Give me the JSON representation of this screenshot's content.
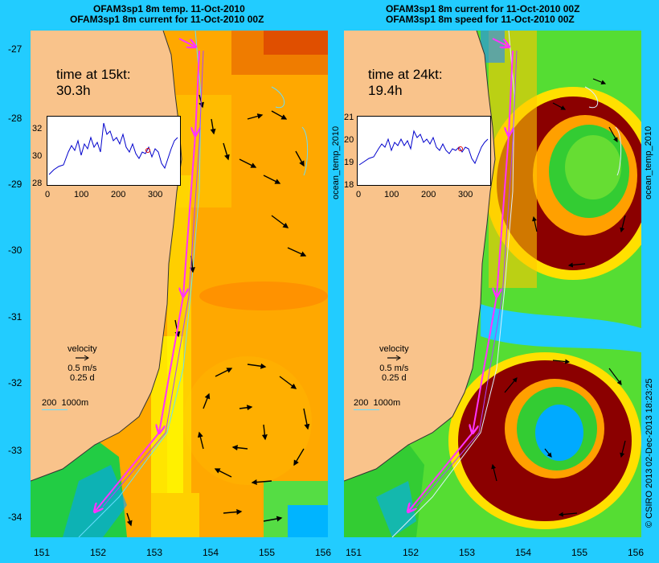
{
  "titles": {
    "left_line1": "OFAM3sp1 8m temp. 11-Oct-2010",
    "left_line2": "OFAM3sp1 8m current for 11-Oct-2010 00Z",
    "right_line1": "OFAM3sp1 8m current for 11-Oct-2010 00Z",
    "right_line2": "OFAM3sp1 8m speed for 11-Oct-2010 00Z"
  },
  "y_ticks": [
    "-27",
    "-28",
    "-29",
    "-30",
    "-31",
    "-32",
    "-33",
    "-34"
  ],
  "x_ticks": [
    "151",
    "152",
    "153",
    "154",
    "155",
    "156"
  ],
  "left_panel": {
    "time_label": "time at 15kt:",
    "time_value": "30.3h",
    "inset_y_ticks": [
      "32",
      "30",
      "28"
    ],
    "inset_x_ticks": [
      "0",
      "100",
      "200",
      "300"
    ]
  },
  "right_panel": {
    "time_label": "time at 24kt:",
    "time_value": "19.4h",
    "inset_y_ticks": [
      "21",
      "20",
      "19",
      "18"
    ],
    "inset_x_ticks": [
      "0",
      "100",
      "200",
      "300"
    ]
  },
  "velocity_legend": {
    "label": "velocity",
    "speed": "0.5 m/s",
    "duration": "0.25 d"
  },
  "depth_legend": {
    "contour1": "200",
    "contour2": "1000m"
  },
  "side_labels": {
    "inset_var": "ocean_temp_2010",
    "credit": "© CSIRO 2013",
    "timestamp": "02-Dec-2013 18:23:25"
  },
  "colors": {
    "background": "#22ccff",
    "land": "#f9c38b",
    "route": "#ff33ff",
    "temp_warm": "#ffa800",
    "temp_hot": "#cc1100",
    "speed_high": "#8b0000"
  }
}
